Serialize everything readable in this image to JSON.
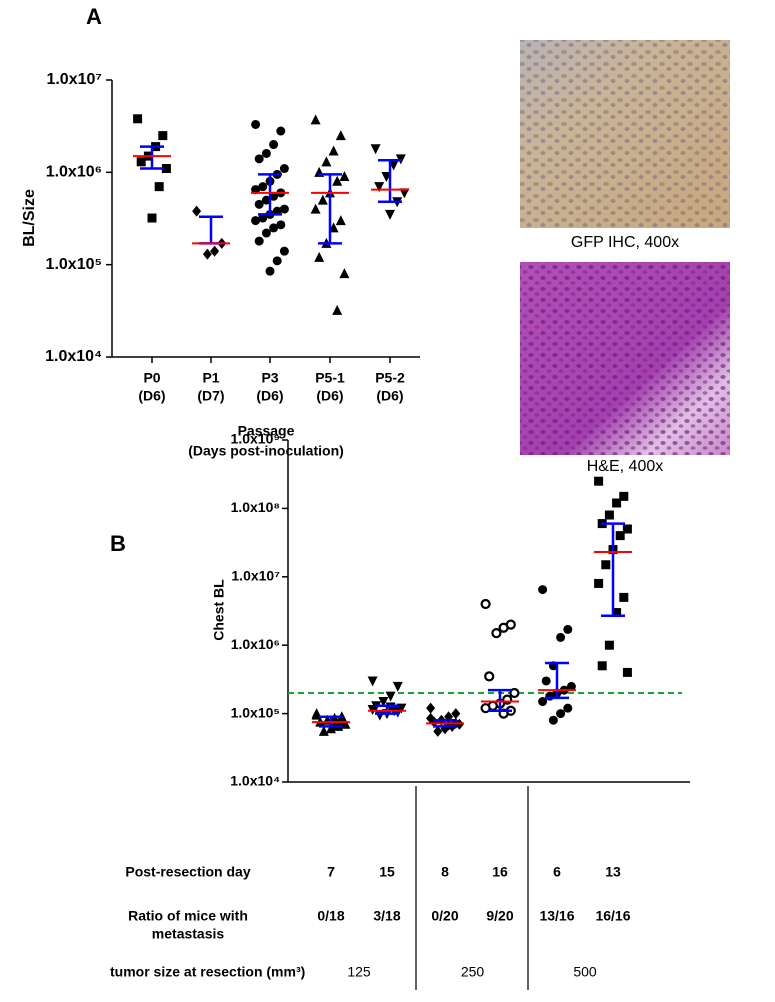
{
  "panel_a": "A",
  "panel_b": "B",
  "images": [
    {
      "caption": "GFP IHC, 400x"
    },
    {
      "caption": "H&E, 400x"
    }
  ],
  "chart_data": [
    {
      "type": "dot",
      "ylabel": "BL/Size",
      "xlabel": [
        "Passage",
        "(Days post-inoculation)"
      ],
      "categories": [
        [
          "P0",
          "(D6)"
        ],
        [
          "P1",
          "(D7)"
        ],
        [
          "P3",
          "(D6)"
        ],
        [
          "P5-1",
          "(D6)"
        ],
        [
          "P5-2",
          "(D6)"
        ]
      ],
      "markers": [
        "square",
        "diamond",
        "circle",
        "triangle",
        "triangle-down"
      ],
      "values": [
        [
          3800000,
          2500000,
          1900000,
          1500000,
          1300000,
          1100000,
          700000,
          320000
        ],
        [
          380000,
          170000,
          140000,
          130000
        ],
        [
          3300000,
          2800000,
          2000000,
          1600000,
          1400000,
          1100000,
          950000,
          800000,
          700000,
          650000,
          600000,
          550000,
          500000,
          450000,
          400000,
          380000,
          350000,
          320000,
          300000,
          270000,
          250000,
          220000,
          180000,
          140000,
          110000,
          85000
        ],
        [
          3700000,
          2500000,
          1700000,
          1300000,
          1000000,
          900000,
          800000,
          600000,
          500000,
          400000,
          300000,
          250000,
          170000,
          120000,
          80000,
          32000
        ],
        [
          1800000,
          1400000,
          1200000,
          900000,
          700000,
          600000,
          480000,
          350000
        ]
      ],
      "means": [
        1500000,
        170000,
        600000,
        600000,
        650000
      ],
      "error_low": [
        1100000,
        170000,
        350000,
        170000,
        480000
      ],
      "error_high": [
        1900000,
        330000,
        950000,
        950000,
        1350000
      ],
      "ylog": true,
      "ylim": [
        10000,
        10000000
      ],
      "yticks": [
        {
          "value": 10000,
          "label": "1.0x10⁴"
        },
        {
          "value": 100000,
          "label": "1.0x10⁵"
        },
        {
          "value": 1000000,
          "label": "1.0x10⁶"
        },
        {
          "value": 10000000,
          "label": "1.0x10⁷"
        }
      ],
      "marker_color": "#000000",
      "mean_color": "#ff0000",
      "error_color": "#0000ff"
    },
    {
      "type": "dot",
      "ylabel": "Chest BL",
      "markers": [
        "triangle",
        "triangle-down",
        "diamond",
        "open-circle",
        "circle",
        "square"
      ],
      "values": [
        [
          100000,
          90000,
          85000,
          80000,
          75000,
          70000,
          65000,
          60000,
          55000,
          95000,
          78000,
          68000
        ],
        [
          300000,
          250000,
          180000,
          150000,
          130000,
          120000,
          110000,
          100000,
          95000,
          115000,
          105000,
          125000
        ],
        [
          120000,
          100000,
          90000,
          80000,
          75000,
          70000,
          65000,
          60000,
          55000,
          85000,
          72000,
          68000
        ],
        [
          4000000,
          2000000,
          1800000,
          1500000,
          350000,
          200000,
          160000,
          140000,
          130000,
          120000,
          110000,
          100000
        ],
        [
          6500000,
          1700000,
          1300000,
          500000,
          300000,
          250000,
          220000,
          200000,
          180000,
          150000,
          120000,
          100000,
          80000
        ],
        [
          250000000,
          150000000,
          120000000,
          80000000,
          60000000,
          50000000,
          40000000,
          25000000,
          15000000,
          8000000,
          5000000,
          3000000,
          1000000,
          500000,
          400000
        ]
      ],
      "means": [
        75000,
        110000,
        72000,
        150000,
        220000,
        23000000
      ],
      "error_low": [
        65000,
        100000,
        65000,
        110000,
        170000,
        2700000
      ],
      "error_high": [
        90000,
        130000,
        80000,
        220000,
        550000,
        60000000
      ],
      "threshold": 200000,
      "threshold_color": "#1aa33c",
      "ylog": true,
      "ylim": [
        10000,
        1000000000
      ],
      "yticks": [
        {
          "value": 10000,
          "label": "1.0x10⁴"
        },
        {
          "value": 100000,
          "label": "1.0x10⁵"
        },
        {
          "value": 1000000,
          "label": "1.0x10⁶"
        },
        {
          "value": 10000000,
          "label": "1.0x10⁷"
        },
        {
          "value": 100000000,
          "label": "1.0x10⁸"
        },
        {
          "value": 1000000000,
          "label": "1.0x10⁹"
        }
      ],
      "marker_color": "#000000",
      "mean_color": "#ff0000",
      "error_color": "#0000ff"
    }
  ],
  "table": {
    "rows": [
      {
        "label": [
          "Post-resection day"
        ],
        "cells": [
          "7",
          "15",
          "8",
          "16",
          "6",
          "13"
        ]
      },
      {
        "label": [
          "Ratio of mice with",
          "metastasis"
        ],
        "cells": [
          "0/18",
          "3/18",
          "0/20",
          "9/20",
          "13/16",
          "16/16"
        ]
      },
      {
        "label": [
          "tumor size at resection (mm³)"
        ],
        "cells": [
          "125",
          "250",
          "500"
        ]
      }
    ]
  }
}
